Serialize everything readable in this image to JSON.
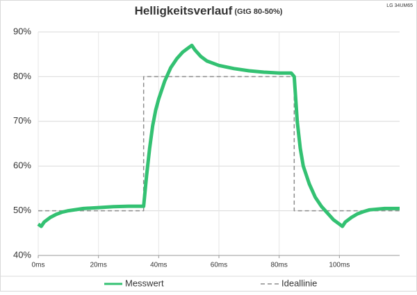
{
  "chart_data": {
    "type": "line",
    "title": "Helligkeitsverlauf",
    "subtitle": "(GtG 80-50%)",
    "note": "LG 34UM65",
    "xlim": [
      0,
      120
    ],
    "xticks": [
      {
        "value": 0,
        "label": "0ms"
      },
      {
        "value": 20,
        "label": "20ms"
      },
      {
        "value": 40,
        "label": "40ms"
      },
      {
        "value": 60,
        "label": "60ms"
      },
      {
        "value": 80,
        "label": "80ms"
      },
      {
        "value": 100,
        "label": "100ms"
      }
    ],
    "ylim": [
      40,
      90
    ],
    "yticks": [
      {
        "value": 40,
        "label": "40%"
      },
      {
        "value": 50,
        "label": "50%"
      },
      {
        "value": 60,
        "label": "60%"
      },
      {
        "value": 70,
        "label": "70%"
      },
      {
        "value": 80,
        "label": "80%"
      },
      {
        "value": 90,
        "label": "90%"
      }
    ],
    "grid": true,
    "legend": "bottom",
    "series": [
      {
        "name": "Messwert",
        "color": "#33c172",
        "style": "solid",
        "x": [
          0,
          1,
          2,
          4,
          6,
          8,
          10,
          15,
          20,
          25,
          30,
          34,
          35,
          36,
          37,
          38,
          39,
          40,
          42,
          44,
          46,
          48,
          50,
          51,
          52,
          54,
          56,
          58,
          60,
          65,
          70,
          75,
          80,
          84,
          85,
          86,
          87,
          88,
          90,
          92,
          94,
          96,
          98,
          100,
          101,
          102,
          104,
          106,
          108,
          110,
          115,
          120
        ],
        "values": [
          47,
          46.5,
          47.5,
          48.5,
          49.2,
          49.7,
          50,
          50.5,
          50.7,
          50.9,
          51,
          51,
          51,
          58,
          64,
          69,
          72.5,
          75,
          79,
          82,
          84,
          85.5,
          86.5,
          87,
          86,
          84.5,
          83.5,
          83,
          82.5,
          81.8,
          81.3,
          81,
          80.8,
          80.8,
          80,
          70,
          64,
          60,
          56,
          53,
          51,
          49.5,
          48,
          47,
          46.5,
          47.5,
          48.5,
          49.3,
          49.8,
          50.2,
          50.5,
          50.5
        ]
      },
      {
        "name": "Ideallinie",
        "color": "#8c8c8c",
        "style": "dashed",
        "x": [
          0,
          35,
          35,
          85,
          85,
          120
        ],
        "values": [
          50,
          50,
          80,
          80,
          50,
          50
        ]
      }
    ]
  }
}
